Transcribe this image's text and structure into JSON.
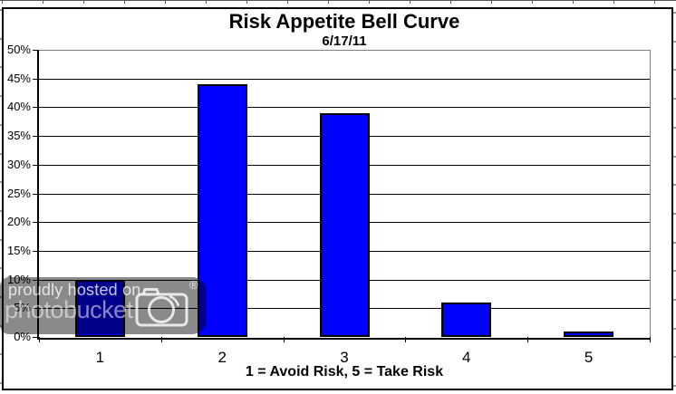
{
  "chart_data": {
    "type": "bar",
    "title": "Risk Appetite Bell Curve",
    "subtitle": "6/17/11",
    "xlabel": "1 = Avoid Risk, 5 = Take Risk",
    "ylabel": "",
    "categories": [
      "1",
      "2",
      "3",
      "4",
      "5"
    ],
    "values": [
      10,
      44,
      39,
      6,
      1
    ],
    "ylim": [
      0,
      50
    ],
    "ytick_step": 5,
    "yticks": [
      "50%",
      "45%",
      "40%",
      "35%",
      "30%",
      "25%",
      "20%",
      "15%",
      "10%",
      "5%",
      "0%"
    ],
    "grid": true,
    "legend": false,
    "bar_color": "#0000ff",
    "bar_border_color": "#000000",
    "gridline_color": "#000000",
    "plot_border_color": "#808080"
  },
  "watermark": {
    "line1": "proudly hosted on",
    "line2": "photobucket",
    "registered_mark": "®"
  }
}
